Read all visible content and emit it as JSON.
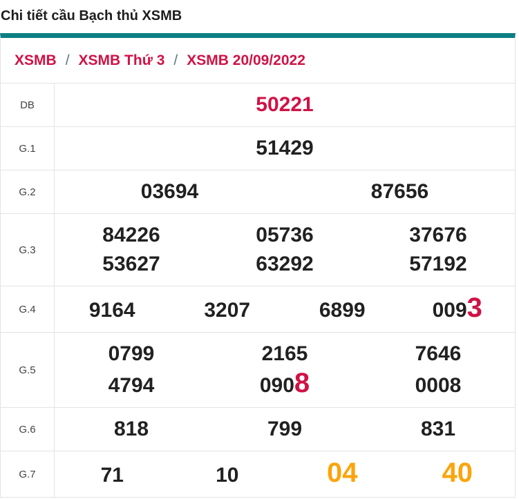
{
  "page_title": "Chi tiết cầu Bạch thủ XSMB",
  "colors": {
    "accent_teal": "#0d7e82",
    "highlight_red": "#d01245",
    "highlight_orange": "#fba40b",
    "border_gray": "#e3e3e3"
  },
  "breadcrumb": {
    "separator": "/",
    "items": [
      {
        "label": "XSMB"
      },
      {
        "label": "XSMB Thứ 3"
      },
      {
        "label": "XSMB 20/09/2022"
      }
    ]
  },
  "results_table": {
    "rows": [
      {
        "label": "DB",
        "lines": [
          [
            {
              "parts": [
                {
                  "text": "50221",
                  "color": "red"
                }
              ]
            }
          ]
        ]
      },
      {
        "label": "G.1",
        "lines": [
          [
            {
              "parts": [
                {
                  "text": "51429"
                }
              ]
            }
          ]
        ]
      },
      {
        "label": "G.2",
        "lines": [
          [
            {
              "parts": [
                {
                  "text": "03694"
                }
              ]
            },
            {
              "parts": [
                {
                  "text": "87656"
                }
              ]
            }
          ]
        ]
      },
      {
        "label": "G.3",
        "lines": [
          [
            {
              "parts": [
                {
                  "text": "84226"
                }
              ]
            },
            {
              "parts": [
                {
                  "text": "05736"
                }
              ]
            },
            {
              "parts": [
                {
                  "text": "37676"
                }
              ]
            }
          ],
          [
            {
              "parts": [
                {
                  "text": "53627"
                }
              ]
            },
            {
              "parts": [
                {
                  "text": "63292"
                }
              ]
            },
            {
              "parts": [
                {
                  "text": "57192"
                }
              ]
            }
          ]
        ]
      },
      {
        "label": "G.4",
        "lines": [
          [
            {
              "parts": [
                {
                  "text": "9164"
                }
              ]
            },
            {
              "parts": [
                {
                  "text": "3207"
                }
              ]
            },
            {
              "parts": [
                {
                  "text": "6899"
                }
              ]
            },
            {
              "parts": [
                {
                  "text": "009"
                },
                {
                  "text": "3",
                  "color": "red",
                  "large": true
                }
              ]
            }
          ]
        ]
      },
      {
        "label": "G.5",
        "lines": [
          [
            {
              "parts": [
                {
                  "text": "0799"
                }
              ]
            },
            {
              "parts": [
                {
                  "text": "2165"
                }
              ]
            },
            {
              "parts": [
                {
                  "text": "7646"
                }
              ]
            }
          ],
          [
            {
              "parts": [
                {
                  "text": "4794"
                }
              ]
            },
            {
              "parts": [
                {
                  "text": "090"
                },
                {
                  "text": "8",
                  "color": "red",
                  "large": true
                }
              ]
            },
            {
              "parts": [
                {
                  "text": "0008"
                }
              ]
            }
          ]
        ]
      },
      {
        "label": "G.6",
        "lines": [
          [
            {
              "parts": [
                {
                  "text": "818"
                }
              ]
            },
            {
              "parts": [
                {
                  "text": "799"
                }
              ]
            },
            {
              "parts": [
                {
                  "text": "831"
                }
              ]
            }
          ]
        ]
      },
      {
        "label": "G.7",
        "lines": [
          [
            {
              "parts": [
                {
                  "text": "71"
                }
              ]
            },
            {
              "parts": [
                {
                  "text": "10"
                }
              ]
            },
            {
              "parts": [
                {
                  "text": "04",
                  "color": "orange",
                  "large": true
                }
              ]
            },
            {
              "parts": [
                {
                  "text": "40",
                  "color": "orange",
                  "large": true
                }
              ]
            }
          ]
        ]
      }
    ]
  }
}
